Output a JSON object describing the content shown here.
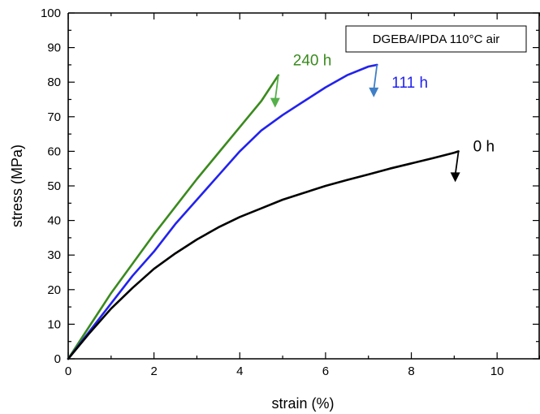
{
  "chart_data": {
    "type": "line",
    "xlabel": "strain (%)",
    "ylabel": "stress (MPa)",
    "xlim": [
      0,
      11
    ],
    "ylim": [
      0,
      100
    ],
    "x_ticks": [
      "0",
      "2",
      "4",
      "6",
      "8",
      "10"
    ],
    "y_ticks": [
      "0",
      "10",
      "20",
      "30",
      "40",
      "50",
      "60",
      "70",
      "80",
      "90",
      "100"
    ],
    "legend_box_text": "DGEBA/IPDA 110°C air",
    "legend_placement": "top-right",
    "grid": false,
    "series": [
      {
        "name": "240 h",
        "color": "#3a8a1e",
        "arrow_color": "#55b04a",
        "x": [
          0,
          0.5,
          1,
          1.5,
          2,
          2.5,
          3,
          3.5,
          4,
          4.5,
          4.9
        ],
        "y": [
          0,
          9.5,
          19,
          27.5,
          36,
          44,
          52,
          59.5,
          67,
          74.5,
          82
        ]
      },
      {
        "name": "111 h",
        "color": "#2222ee",
        "arrow_color": "#3f7fc6",
        "x": [
          0,
          0.5,
          1,
          1.5,
          2,
          2.5,
          3,
          3.5,
          4,
          4.5,
          5,
          5.5,
          6,
          6.5,
          7,
          7.2
        ],
        "y": [
          0,
          8,
          16,
          24,
          31,
          39,
          46,
          53,
          60,
          66,
          70.5,
          74.5,
          78.5,
          82,
          84.5,
          85
        ]
      },
      {
        "name": "0 h",
        "color": "#000000",
        "arrow_color": "#000000",
        "x": [
          0,
          0.5,
          1,
          1.5,
          2,
          2.5,
          3,
          3.5,
          4,
          4.5,
          5,
          5.5,
          6,
          6.5,
          7,
          7.5,
          8,
          8.5,
          9,
          9.1
        ],
        "y": [
          0,
          7.5,
          14.5,
          20.5,
          26,
          30.5,
          34.5,
          38,
          41,
          43.5,
          46,
          48,
          50,
          51.7,
          53.3,
          55,
          56.5,
          58,
          59.6,
          60
        ]
      }
    ]
  }
}
